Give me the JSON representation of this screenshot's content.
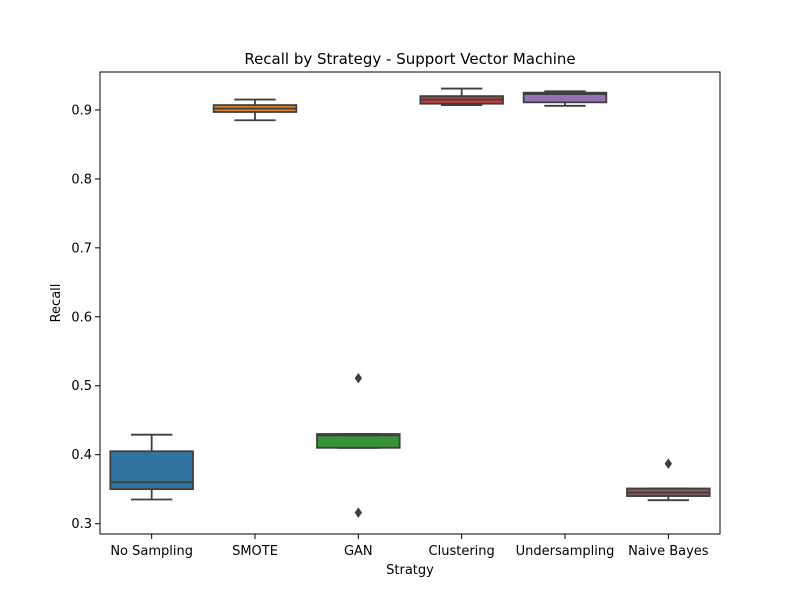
{
  "chart_data": {
    "type": "box",
    "title": "Recall by Strategy - Support Vector Machine",
    "xlabel": "Stratgy",
    "ylabel": "Recall",
    "ylim": [
      0.285,
      0.955
    ],
    "yticks": [
      "0.3",
      "0.4",
      "0.5",
      "0.6",
      "0.7",
      "0.8",
      "0.9"
    ],
    "grid": false,
    "categories": [
      "No Sampling",
      "SMOTE",
      "GAN",
      "Clustering",
      "Undersampling",
      "Naive Bayes"
    ],
    "boxes": [
      {
        "category": "No Sampling",
        "color": "#3274a1",
        "whisker_low": 0.335,
        "q1": 0.35,
        "median": 0.36,
        "q3": 0.405,
        "whisker_high": 0.429,
        "outliers": []
      },
      {
        "category": "SMOTE",
        "color": "#e1812c",
        "whisker_low": 0.885,
        "q1": 0.897,
        "median": 0.902,
        "q3": 0.907,
        "whisker_high": 0.915,
        "outliers": []
      },
      {
        "category": "GAN",
        "color": "#3a923a",
        "whisker_low": 0.41,
        "q1": 0.41,
        "median": 0.428,
        "q3": 0.43,
        "whisker_high": 0.43,
        "outliers": [
          0.511,
          0.316
        ]
      },
      {
        "category": "Clustering",
        "color": "#c03d3e",
        "whisker_low": 0.907,
        "q1": 0.909,
        "median": 0.915,
        "q3": 0.92,
        "whisker_high": 0.931,
        "outliers": []
      },
      {
        "category": "Undersampling",
        "color": "#9372b2",
        "whisker_low": 0.906,
        "q1": 0.911,
        "median": 0.923,
        "q3": 0.925,
        "whisker_high": 0.927,
        "outliers": []
      },
      {
        "category": "Naive Bayes",
        "color": "#845b53",
        "whisker_low": 0.334,
        "q1": 0.34,
        "median": 0.345,
        "q3": 0.351,
        "whisker_high": 0.351,
        "outliers": [
          0.387
        ]
      }
    ]
  }
}
